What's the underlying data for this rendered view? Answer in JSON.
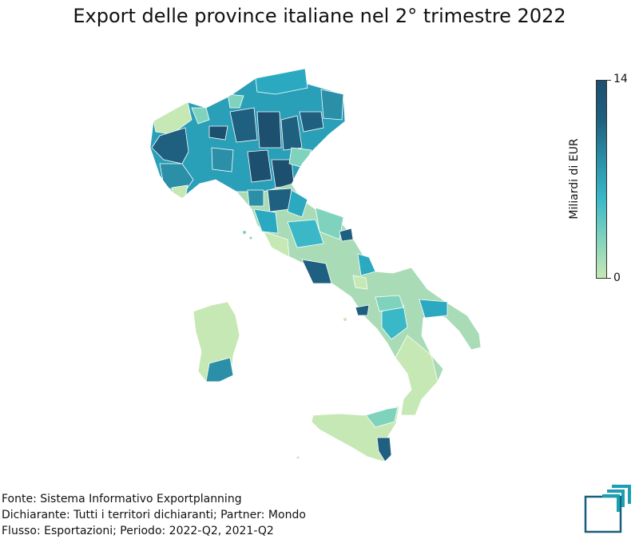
{
  "title": "Export delle province italiane nel 2° trimestre 2022",
  "colorbar": {
    "label": "Miliardi di EUR",
    "min_label": "0",
    "max_label": "14",
    "range": [
      0,
      14
    ],
    "colors": [
      "#c6e8b4",
      "#7fd3bd",
      "#3bb8c8",
      "#2a8fa7",
      "#1f6080",
      "#1d4f6e"
    ]
  },
  "footer": {
    "line1": "Fonte: Sistema Informativo Exportplanning",
    "line2": "Dichiarante: Tutti i territori dichiaranti; Partner: Mondo",
    "line3": "Flusso: Esportazioni; Periodo: 2022-Q2, 2021-Q2"
  },
  "logo": {
    "icon": "exportplanning-logo-icon",
    "color": "#1a5e7a",
    "accent": "#1a9fb3"
  }
}
